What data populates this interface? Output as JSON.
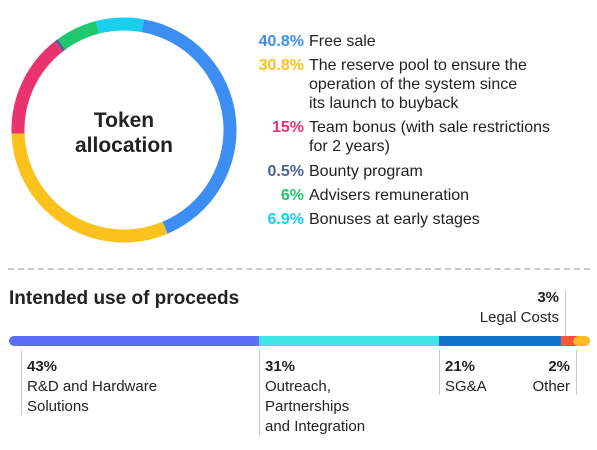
{
  "chart_data": [
    {
      "type": "pie",
      "title": "Token allocation",
      "slices": [
        {
          "value": 40.8,
          "label": "Free sale",
          "pct_text": "40.8%",
          "color": "#3d8ef2"
        },
        {
          "value": 30.8,
          "label": "The reserve pool to ensure the\noperation of the system since\nits launch to buyback",
          "pct_text": "30.8%",
          "color": "#fbc21c"
        },
        {
          "value": 15,
          "label": "Team bonus (with sale restrictions\nfor 2 years)",
          "pct_text": "15%",
          "color": "#e9336f"
        },
        {
          "value": 0.5,
          "label": "Bounty program",
          "pct_text": "0.5%",
          "color": "#4a6491"
        },
        {
          "value": 6,
          "label": "Advisers remuneration",
          "pct_text": "6%",
          "color": "#1ec96d"
        },
        {
          "value": 6.9,
          "label": "Bonuses at early stages",
          "pct_text": "6.9%",
          "color": "#17d0f0"
        }
      ]
    },
    {
      "type": "bar",
      "title": "Intended use of proceeds",
      "segments": [
        {
          "value": 43,
          "pct_text": "43%",
          "label": "R&D and Hardware\nSolutions",
          "color": "#5b6cf5"
        },
        {
          "value": 31,
          "pct_text": "31%",
          "label": "Outreach,\nPartnerships\nand Integration",
          "color": "#3fe4e4"
        },
        {
          "value": 21,
          "pct_text": "21%",
          "label": "SG&A",
          "color": "#0d72c8"
        },
        {
          "value": 3,
          "pct_text": "3%",
          "label": "Legal Costs",
          "color": "#f7563a"
        },
        {
          "value": 2,
          "pct_text": "2%",
          "label": "Other",
          "color": "#fbb820"
        }
      ]
    }
  ]
}
